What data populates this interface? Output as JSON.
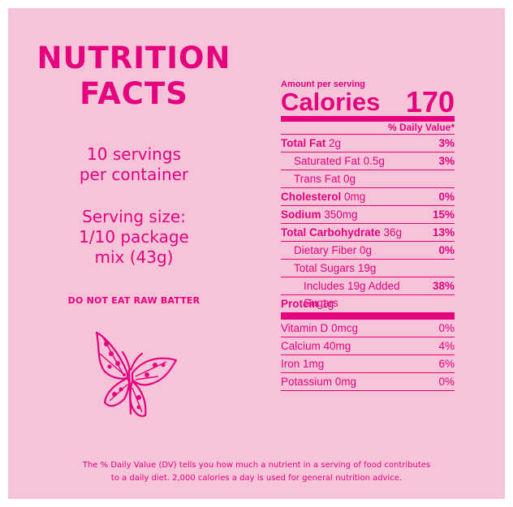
{
  "left": {
    "title_line1": "NUTRITION",
    "title_line2": "FACTS",
    "servings_line1": "10 servings",
    "servings_line2": "per container",
    "size_line1": "Serving size:",
    "size_line2": "1/10 package",
    "size_line3": "mix (43g)",
    "warning": "DO NOT EAT RAW BATTER"
  },
  "facts": {
    "amount_per_serving": "Amount per serving",
    "calories_label": "Calories",
    "calories_value": "170",
    "dv_header": "% Daily Value*",
    "rows": [
      {
        "name": "Total Fat",
        "amount": "2g",
        "dv": "3%"
      },
      {
        "name": "Saturated Fat",
        "amount": "0.5g",
        "dv": "3%"
      },
      {
        "name": "Trans Fat",
        "amount": "0g",
        "dv": ""
      },
      {
        "name": "Cholesterol",
        "amount": "0mg",
        "dv": "0%"
      },
      {
        "name": "Sodium",
        "amount": "350mg",
        "dv": "15%"
      },
      {
        "name": "Total Carbohydrate",
        "amount": "36g",
        "dv": "13%"
      },
      {
        "name": "Dietary Fiber",
        "amount": "0g",
        "dv": "0%"
      },
      {
        "name": "Total Sugars",
        "amount": "19g",
        "dv": ""
      },
      {
        "name": "Includes 19g Added Sugars",
        "amount": "",
        "dv": "38%"
      },
      {
        "name": "Protein",
        "amount": "1g",
        "dv": ""
      }
    ],
    "vitamins": [
      {
        "name": "Vitamin D 0mcg",
        "dv": "0%"
      },
      {
        "name": "Calcium 40mg",
        "dv": "4%"
      },
      {
        "name": "Iron 1mg",
        "dv": "6%"
      },
      {
        "name": "Potassium 0mg",
        "dv": "0%"
      }
    ]
  },
  "footnote_line1": "The % Daily Value (DV) tells you how much a nutrient in a serving of food contributes",
  "footnote_line2": "to a daily diet. 2,000 calories a day is used for general nutrition advice.",
  "colors": {
    "background": "#f7c3d8",
    "accent": "#e5007e"
  },
  "icons": [
    "butterfly-icon"
  ]
}
